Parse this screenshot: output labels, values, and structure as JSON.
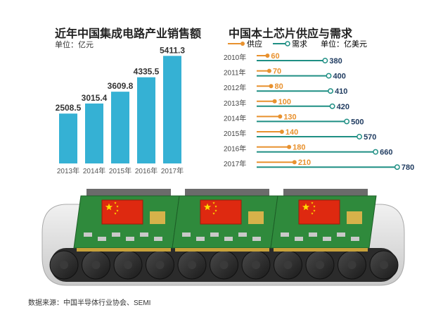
{
  "left_title": "近年中国集成电路产业销售额",
  "left_unit": "单位：亿元",
  "right_title": "中国本土芯片供应与需求",
  "right_unit": "单位：亿美元",
  "source": "数据来源：中国半导体行业协会、SEMI",
  "colors": {
    "bar": "#35b1d4",
    "supply": "#e8912e",
    "demand": "#1f8f84"
  },
  "chart_data": [
    {
      "type": "bar",
      "title": "近年中国集成电路产业销售额",
      "ylabel": "单位：亿元",
      "categories": [
        "2013年",
        "2014年",
        "2015年",
        "2016年",
        "2017年"
      ],
      "values": [
        2508.5,
        3015.4,
        3609.8,
        4335.5,
        5411.3
      ],
      "value_labels": [
        "2508.5",
        "3015.4",
        "3609.8",
        "4335.5",
        "5411.3"
      ],
      "ylim": [
        0,
        5600
      ],
      "grid": false
    },
    {
      "type": "bar",
      "orientation": "horizontal-lollipop",
      "title": "中国本土芯片供应与需求",
      "unit": "单位：亿美元",
      "categories": [
        "2010年",
        "2011年",
        "2012年",
        "2013年",
        "2014年",
        "2015年",
        "2016年",
        "2017年"
      ],
      "series": [
        {
          "name": "供应",
          "values": [
            60,
            70,
            80,
            100,
            130,
            140,
            180,
            210
          ]
        },
        {
          "name": "需求",
          "values": [
            380,
            400,
            410,
            420,
            500,
            570,
            660,
            780
          ]
        }
      ],
      "xlim": [
        0,
        800
      ]
    }
  ]
}
